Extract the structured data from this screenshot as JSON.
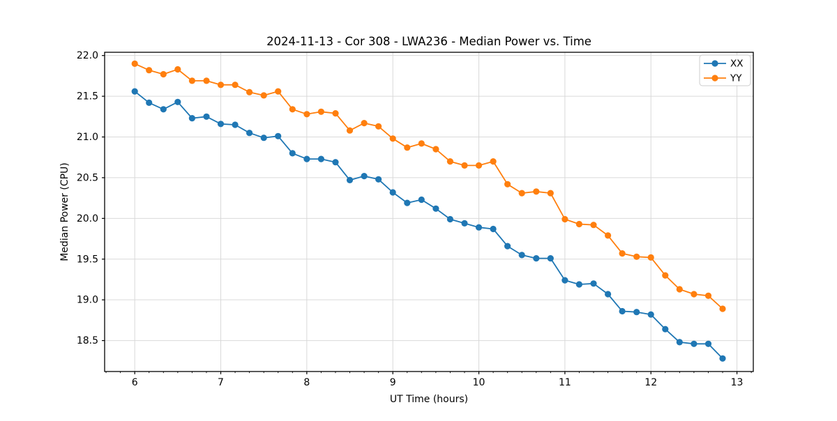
{
  "chart": {
    "title": "2024-11-13 - Cor 308 - LWA236 - Median Power vs. Time",
    "xlabel": "UT Time (hours)",
    "ylabel": "Median Power (CPU)"
  },
  "chart_data": {
    "type": "line",
    "title": "2024-11-13 - Cor 308 - LWA236 - Median Power vs. Time",
    "xlabel": "UT Time (hours)",
    "ylabel": "Median Power (CPU)",
    "xlim": [
      5.65,
      13.19
    ],
    "ylim": [
      18.12,
      22.04
    ],
    "xticks": [
      6,
      7,
      8,
      9,
      10,
      11,
      12,
      13
    ],
    "yticks": [
      18.5,
      19.0,
      19.5,
      20.0,
      20.5,
      21.0,
      21.5,
      22.0
    ],
    "x_minor_tick_step": 0.166667,
    "grid": true,
    "legend_position": "upper right",
    "marker": "o",
    "grid_color": "#d9d9d9",
    "x": [
      6.0,
      6.1667,
      6.3333,
      6.5,
      6.6667,
      6.8333,
      7.0,
      7.1667,
      7.3333,
      7.5,
      7.6667,
      7.8333,
      8.0,
      8.1667,
      8.3333,
      8.5,
      8.6667,
      8.8333,
      9.0,
      9.1667,
      9.3333,
      9.5,
      9.6667,
      9.8333,
      10.0,
      10.1667,
      10.3333,
      10.5,
      10.6667,
      10.8333,
      11.0,
      11.1667,
      11.3333,
      11.5,
      11.6667,
      11.8333,
      12.0,
      12.1667,
      12.3333,
      12.5,
      12.6667,
      12.8333
    ],
    "series": [
      {
        "name": "XX",
        "color": "#1f77b4",
        "values": [
          21.56,
          21.42,
          21.34,
          21.43,
          21.23,
          21.25,
          21.16,
          21.15,
          21.05,
          20.99,
          21.01,
          20.8,
          20.73,
          20.73,
          20.69,
          20.47,
          20.52,
          20.48,
          20.32,
          20.19,
          20.23,
          20.12,
          19.99,
          19.94,
          19.89,
          19.87,
          19.66,
          19.55,
          19.51,
          19.51,
          19.24,
          19.19,
          19.2,
          19.07,
          18.86,
          18.85,
          18.82,
          18.64,
          18.48,
          18.46,
          18.46,
          18.28
        ]
      },
      {
        "name": "YY",
        "color": "#ff7f0e",
        "values": [
          21.9,
          21.82,
          21.77,
          21.83,
          21.69,
          21.69,
          21.64,
          21.64,
          21.55,
          21.51,
          21.56,
          21.34,
          21.28,
          21.31,
          21.29,
          21.08,
          21.17,
          21.13,
          20.98,
          20.87,
          20.92,
          20.85,
          20.7,
          20.65,
          20.65,
          20.7,
          20.42,
          20.31,
          20.33,
          20.31,
          19.99,
          19.93,
          19.92,
          19.79,
          19.57,
          19.53,
          19.52,
          19.3,
          19.13,
          19.07,
          19.05,
          18.89
        ]
      }
    ]
  }
}
